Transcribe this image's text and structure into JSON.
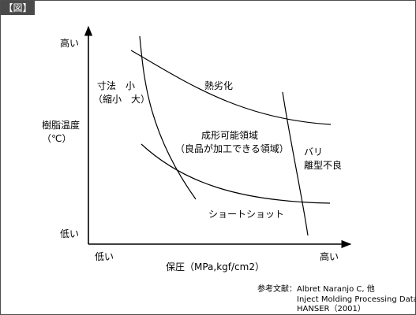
{
  "figure": {
    "tag": "【図】",
    "colors": {
      "border": "#4d4d4d",
      "tag_bg": "#4a4a4a",
      "tag_text": "#ffffff",
      "ink": "#000000"
    }
  },
  "axes": {
    "y_title_line1": "樹脂温度",
    "y_title_line2": "（℃）",
    "y_high": "高い",
    "y_low": "低い",
    "x_title": "保圧（MPa,kgf/cm2）",
    "x_low": "低い",
    "x_high": "高い"
  },
  "regions": {
    "dimension_line1": "寸法　小",
    "dimension_line2": "（縮小　大）",
    "thermal": "熱劣化",
    "window_line1": "成形可能領域",
    "window_line2": "（良品が加工できる領域）",
    "flash_line1": "バリ",
    "flash_line2": "離型不良",
    "short_shot": "ショートショット"
  },
  "reference": {
    "label": "参考文献：",
    "line1": "Albret Naranjo C, 他",
    "line2": "Inject Molding Processing Data,",
    "line3": "HANSER（2001）"
  }
}
